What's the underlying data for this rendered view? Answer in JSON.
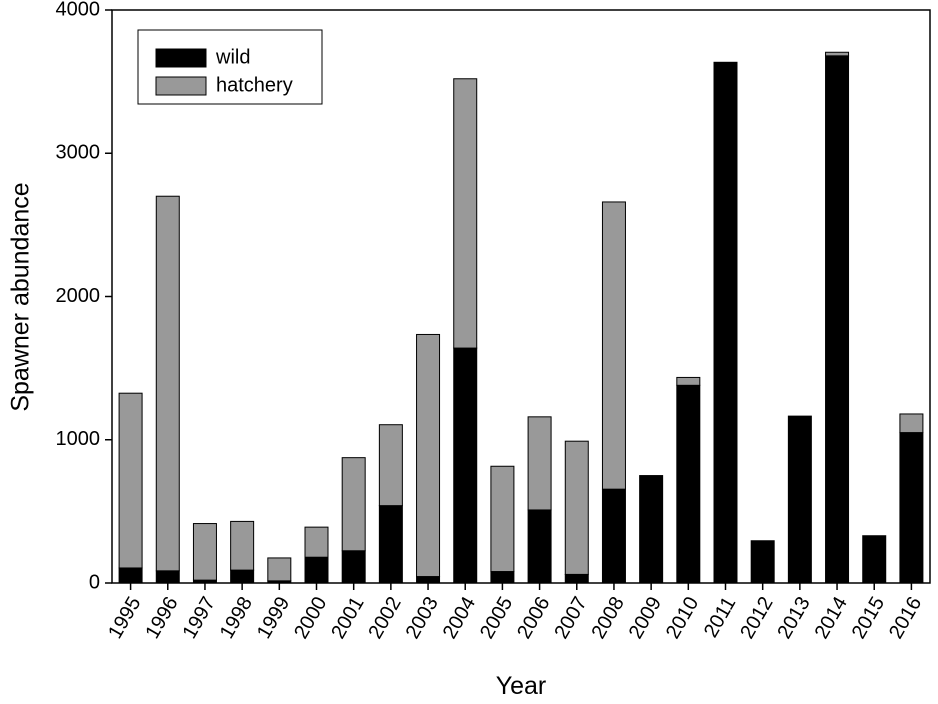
{
  "chart_data": {
    "type": "bar",
    "stacked": true,
    "x_label": "Year",
    "y_label": "Spawner abundance",
    "categories": [
      "1995",
      "1996",
      "1997",
      "1998",
      "1999",
      "2000",
      "2001",
      "2002",
      "2003",
      "2004",
      "2005",
      "2006",
      "2007",
      "2008",
      "2009",
      "2010",
      "2011",
      "2012",
      "2013",
      "2014",
      "2015",
      "2016"
    ],
    "series": [
      {
        "name": "wild",
        "color": "#000000",
        "values": [
          105,
          85,
          20,
          90,
          15,
          180,
          225,
          540,
          45,
          1640,
          80,
          510,
          60,
          655,
          750,
          1380,
          3635,
          295,
          1165,
          3680,
          330,
          1050
        ]
      },
      {
        "name": "hatchery",
        "color": "#999999",
        "values": [
          1220,
          2615,
          395,
          340,
          160,
          210,
          650,
          565,
          1690,
          1880,
          735,
          650,
          930,
          2005,
          0,
          55,
          0,
          0,
          0,
          25,
          0,
          130
        ]
      }
    ],
    "ylim": [
      0,
      4000
    ],
    "yticks": [
      0,
      1000,
      2000,
      3000,
      4000
    ],
    "legend": "upper left",
    "grid": false
  }
}
